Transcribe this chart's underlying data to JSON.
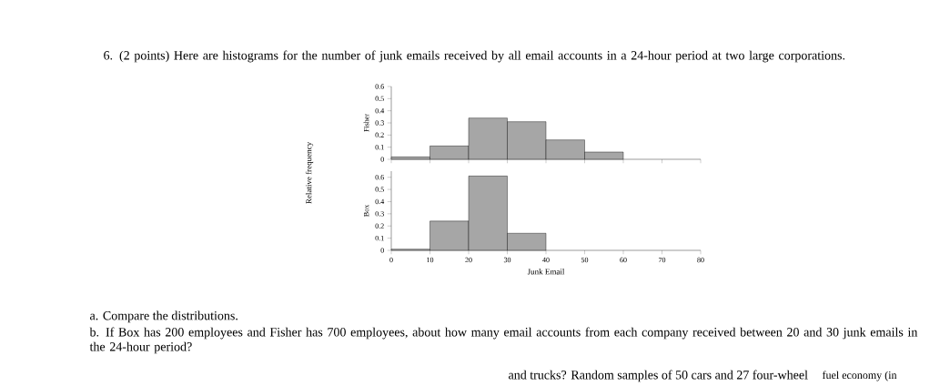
{
  "chart_data": [
    {
      "type": "histogram",
      "title": "6. (2 points) Here are histograms for the number of junk emails received by all email accounts in a 24-hour period at two large corporations.",
      "ylabel": "Fisher",
      "annotations": [
        "Relative frequency"
      ],
      "bins": [
        0,
        10,
        20,
        30,
        40,
        50,
        60
      ],
      "values": [
        0.02,
        0.11,
        0.34,
        0.31,
        0.16,
        0.06
      ],
      "color": "#a6a6a6",
      "xlim": [
        0,
        80
      ],
      "xticks": [
        0,
        10,
        20,
        30,
        40,
        50,
        60,
        70,
        80
      ],
      "ylim": [
        0,
        0.6
      ],
      "yticks": [
        0,
        0.1,
        0.2,
        0.3,
        0.4,
        0.5,
        0.6
      ],
      "tick_labels": "y"
    },
    {
      "type": "histogram",
      "ylabel": "Box",
      "xlabel": "Junk Email",
      "annotations": [
        "a. Compare the distributions.",
        "b. If Box has 200 employees and Fisher has 700 employees, about how many email accounts from each company received between 20 and 30 junk emails in the 24-hour period?",
        "and trucks? Random samples of 50 cars and 27 four-wheel",
        "fuel economy (in"
      ],
      "bins": [
        0,
        10,
        20,
        30,
        40
      ],
      "values": [
        0.01,
        0.24,
        0.61,
        0.14
      ],
      "color": "#a6a6a6",
      "xlim": [
        0,
        80
      ],
      "xticks": [
        0,
        10,
        20,
        30,
        40,
        50,
        60,
        70,
        80
      ],
      "ylim": [
        0,
        0.65
      ],
      "yticks": [
        0,
        0.1,
        0.2,
        0.3,
        0.4,
        0.5,
        0.6
      ]
    }
  ]
}
